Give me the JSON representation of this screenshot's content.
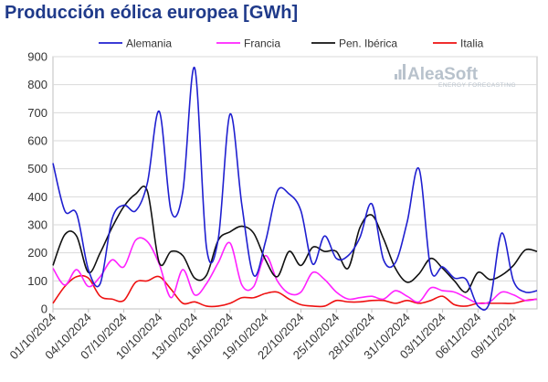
{
  "chart_data": {
    "type": "line",
    "title": "Producción eólica europea [GWh]",
    "xlabel": "",
    "ylabel": "",
    "ylim": [
      0,
      900
    ],
    "yticks": [
      0,
      100,
      200,
      300,
      400,
      500,
      600,
      700,
      800,
      900
    ],
    "x_tick_labels": [
      "01/10/2024",
      "04/10/2024",
      "07/10/2024",
      "10/10/2024",
      "13/10/2024",
      "16/10/2024",
      "19/10/2024",
      "22/10/2024",
      "25/10/2024",
      "28/10/2024",
      "31/10/2024",
      "03/11/2024",
      "06/11/2024",
      "09/11/2024"
    ],
    "x": [
      "01/10/2024",
      "02/10/2024",
      "03/10/2024",
      "04/10/2024",
      "05/10/2024",
      "06/10/2024",
      "07/10/2024",
      "08/10/2024",
      "09/10/2024",
      "10/10/2024",
      "11/10/2024",
      "12/10/2024",
      "13/10/2024",
      "14/10/2024",
      "15/10/2024",
      "16/10/2024",
      "17/10/2024",
      "18/10/2024",
      "19/10/2024",
      "20/10/2024",
      "21/10/2024",
      "22/10/2024",
      "23/10/2024",
      "24/10/2024",
      "25/10/2024",
      "26/10/2024",
      "27/10/2024",
      "28/10/2024",
      "29/10/2024",
      "30/10/2024",
      "31/10/2024",
      "01/11/2024",
      "02/11/2024",
      "03/11/2024",
      "04/11/2024",
      "05/11/2024",
      "06/11/2024",
      "07/11/2024",
      "08/11/2024",
      "09/11/2024",
      "10/11/2024",
      "11/11/2024"
    ],
    "grid": true,
    "legend_position": "top",
    "series": [
      {
        "name": "Alemania",
        "color": "#1f1fd0",
        "values": [
          520,
          350,
          340,
          140,
          90,
          320,
          370,
          350,
          450,
          705,
          350,
          420,
          860,
          220,
          250,
          695,
          370,
          120,
          240,
          420,
          410,
          350,
          160,
          260,
          180,
          190,
          255,
          375,
          175,
          165,
          310,
          500,
          140,
          150,
          110,
          105,
          10,
          25,
          270,
          100,
          60,
          65
        ]
      },
      {
        "name": "Francia",
        "color": "#ff22ff",
        "values": [
          145,
          85,
          140,
          80,
          115,
          175,
          150,
          245,
          240,
          160,
          40,
          140,
          50,
          90,
          165,
          235,
          85,
          80,
          190,
          100,
          55,
          60,
          130,
          105,
          60,
          35,
          40,
          45,
          35,
          65,
          45,
          25,
          75,
          65,
          60,
          40,
          20,
          25,
          60,
          50,
          30,
          35
        ]
      },
      {
        "name": "Pen. Ibérica",
        "color": "#111111",
        "values": [
          155,
          265,
          260,
          130,
          200,
          290,
          365,
          410,
          420,
          165,
          205,
          190,
          110,
          120,
          245,
          275,
          295,
          270,
          175,
          115,
          205,
          155,
          220,
          205,
          205,
          145,
          290,
          335,
          250,
          145,
          95,
          125,
          180,
          145,
          100,
          60,
          130,
          105,
          120,
          155,
          210,
          205
        ]
      },
      {
        "name": "Italia",
        "color": "#ee1111",
        "values": [
          20,
          80,
          115,
          110,
          45,
          35,
          30,
          95,
          100,
          115,
          70,
          20,
          25,
          10,
          10,
          20,
          40,
          40,
          55,
          60,
          35,
          15,
          10,
          10,
          30,
          25,
          25,
          30,
          30,
          20,
          30,
          20,
          30,
          45,
          15,
          10,
          20,
          20,
          20,
          20,
          30,
          35
        ]
      }
    ]
  },
  "logo": {
    "name": "AleaSoft",
    "tagline": "ENERGY FORECASTING"
  }
}
